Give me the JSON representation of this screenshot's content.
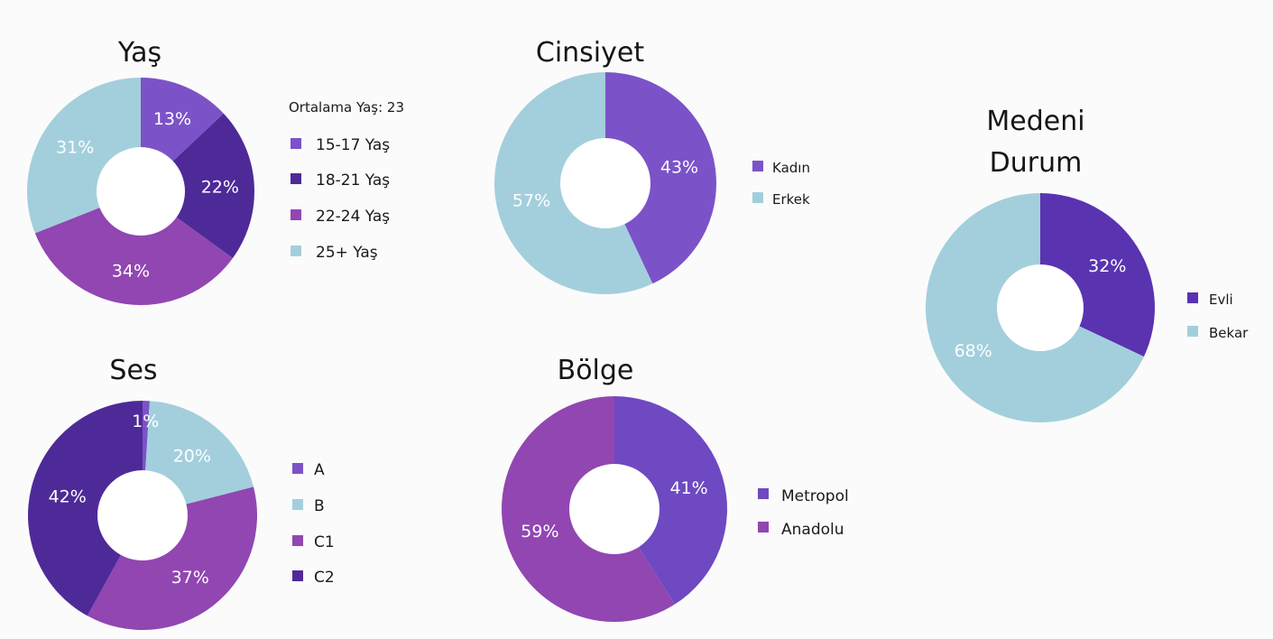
{
  "colors": {
    "purple_light": "#7c52c8",
    "purple_dark": "#4e2a98",
    "magenta": "#9146b2",
    "light_blue": "#a3cfdc",
    "teal_blue": "#7eb6c5",
    "hole": "#ffffff"
  },
  "chart_data": [
    {
      "id": "yas",
      "type": "pie",
      "title": "Yaş",
      "subtitle": "Ortalama Yaş: 23",
      "categories": [
        "15-17 Yaş",
        "18-21 Yaş",
        "22-24 Yaş",
        "25+ Yaş"
      ],
      "values": [
        13,
        22,
        34,
        31
      ],
      "labels": [
        "13%",
        "22%",
        "34%",
        "31%"
      ],
      "colors": [
        "#7c52c8",
        "#4e2a98",
        "#9146b2",
        "#a3cfdc"
      ],
      "donut": true,
      "legend": "right"
    },
    {
      "id": "cinsiyet",
      "type": "pie",
      "title": "Cinsiyet",
      "categories": [
        "Kadın",
        "Erkek"
      ],
      "values": [
        43,
        57
      ],
      "labels": [
        "43%",
        "57%"
      ],
      "colors": [
        "#7c52c8",
        "#a3cfdc"
      ],
      "donut": true,
      "legend": "right"
    },
    {
      "id": "medeni",
      "type": "pie",
      "title": "Medeni Durum",
      "title_lines": [
        "Medeni",
        "Durum"
      ],
      "categories": [
        "Evli",
        "Bekar"
      ],
      "values": [
        32,
        68
      ],
      "labels": [
        "32%",
        "68%"
      ],
      "colors": [
        "#5a33b0",
        "#a3cfdc"
      ],
      "donut": true,
      "legend": "right"
    },
    {
      "id": "ses",
      "type": "pie",
      "title": "Ses",
      "categories": [
        "A",
        "B",
        "C1",
        "C2"
      ],
      "values": [
        1,
        20,
        37,
        42
      ],
      "labels": [
        "1%",
        "20%",
        "37%",
        "42%"
      ],
      "colors": [
        "#7c52c8",
        "#a3cfdc",
        "#9146b2",
        "#4e2a98"
      ],
      "donut": true,
      "legend": "right"
    },
    {
      "id": "bolge",
      "type": "pie",
      "title": "Bölge",
      "categories": [
        "Metropol",
        "Anadolu"
      ],
      "values": [
        41,
        59
      ],
      "labels": [
        "41%",
        "59%"
      ],
      "colors": [
        "#6e49c2",
        "#9146b2"
      ],
      "donut": true,
      "legend": "right"
    }
  ]
}
